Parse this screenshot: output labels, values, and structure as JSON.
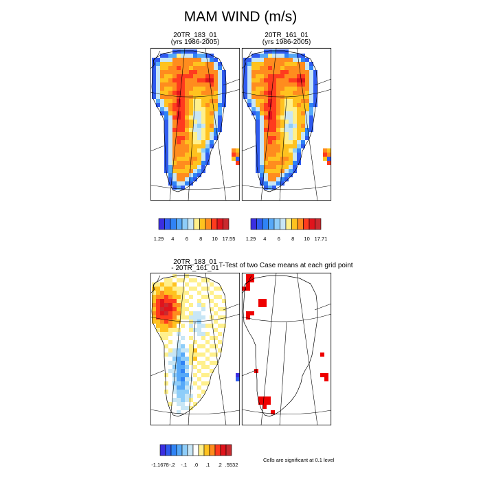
{
  "figure": {
    "title": "MAM WIND (m/s)",
    "note": "Cells are significant at 0.1 level"
  },
  "chart_data": [
    {
      "type": "heatmap",
      "title": "20TR_183_01",
      "subtitle": "(yrs 1986-2005)",
      "legend": {
        "labels": [
          "1.29",
          "4",
          "6",
          "8",
          "10",
          "17.55"
        ],
        "colors": [
          "#3b2ee0",
          "#2f5bf0",
          "#2f83f5",
          "#56a9f8",
          "#8ecdf9",
          "#c8e6f5",
          "#fff08c",
          "#ffc21f",
          "#ff8c1e",
          "#ff3b1e",
          "#e0141c",
          "#c92a2f"
        ]
      }
    },
    {
      "type": "heatmap",
      "title": "20TR_161_01",
      "subtitle": "(yrs 1986-2005)",
      "legend": {
        "labels": [
          "1.29",
          "4",
          "6",
          "8",
          "10",
          "17.71"
        ],
        "colors": [
          "#3b2ee0",
          "#2f5bf0",
          "#2f83f5",
          "#56a9f8",
          "#8ecdf9",
          "#c8e6f5",
          "#fff08c",
          "#ffc21f",
          "#ff8c1e",
          "#ff3b1e",
          "#e0141c",
          "#c92a2f"
        ]
      }
    },
    {
      "type": "heatmap",
      "title": "20TR_183_01",
      "subtitle": "- 20TR_161_01",
      "legend": {
        "labels": [
          "-1.1678",
          "-.2",
          "-.1",
          ".0",
          ".1",
          ".2",
          ".5532"
        ],
        "colors": [
          "#3b2ee0",
          "#2f5bf0",
          "#2f83f5",
          "#56a9f8",
          "#8ecdf9",
          "#c8e6f5",
          "#ffffff",
          "#fff08c",
          "#ffc21f",
          "#ff8c1e",
          "#ff3b1e",
          "#e0141c",
          "#c92a2f"
        ]
      }
    },
    {
      "type": "heatmap",
      "title": "T-Test of two Case means at each grid point",
      "legend": {
        "colors": [
          "#ee0000"
        ]
      }
    }
  ]
}
